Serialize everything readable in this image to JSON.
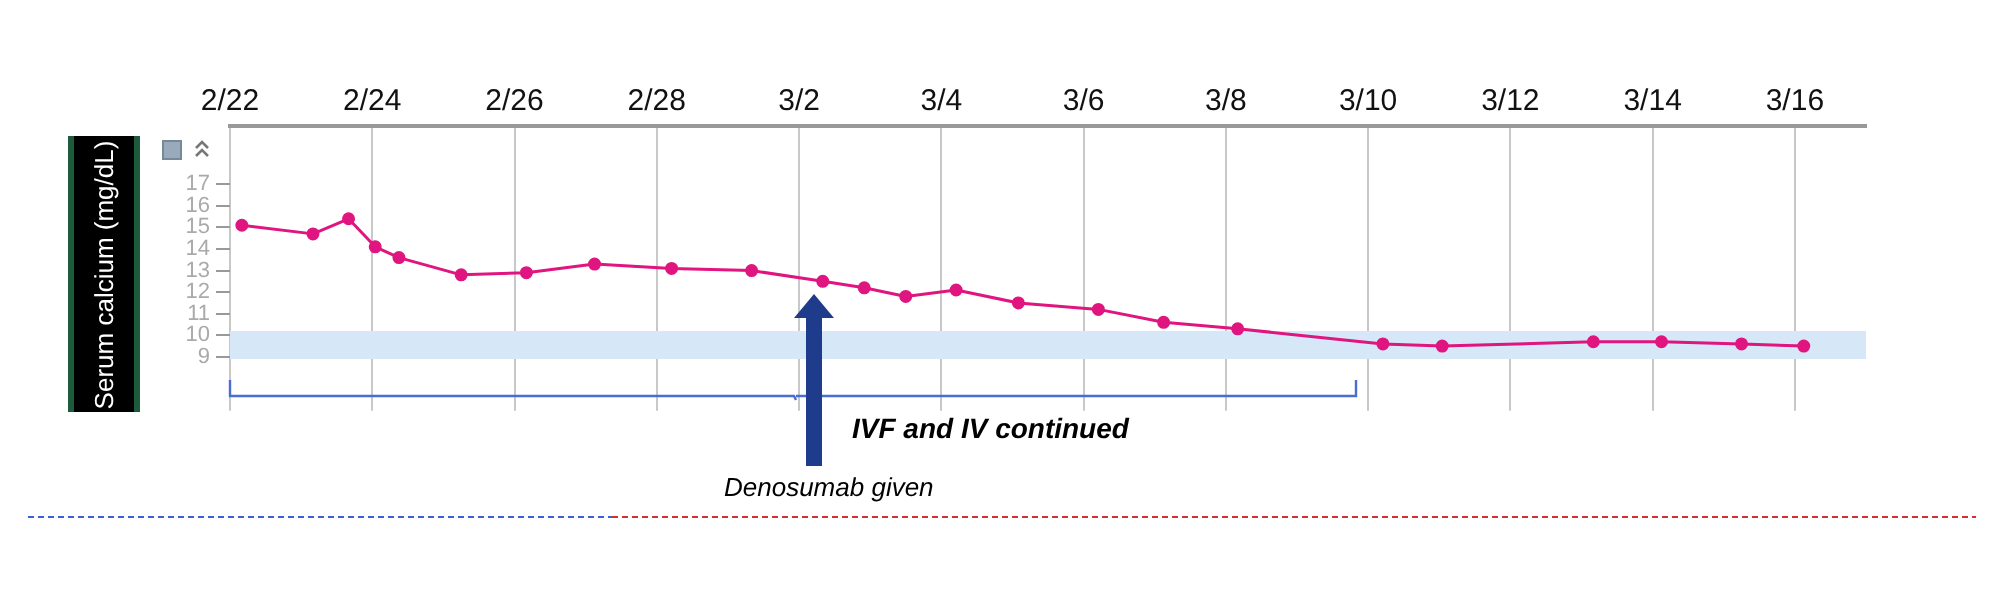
{
  "chart_data": {
    "type": "line",
    "ylabel": "Serum calcium (mg/dL)",
    "x": [
      "--02-22T04:00",
      "--02-23T04:00",
      "--02-23T16:00",
      "--02-24T01:00",
      "--02-24T09:00",
      "--02-25T06:00",
      "--02-26T04:00",
      "--02-27T03:00",
      "--02-28T05:00",
      "--03-01T08:00",
      "--03-02T08:00",
      "--03-02T22:00",
      "--03-03T12:00",
      "--03-04T05:00",
      "--03-05T02:00",
      "--03-06T05:00",
      "--03-07T03:00",
      "--03-08T04:00",
      "--03-10T05:00",
      "--03-11T01:00",
      "--03-13T04:00",
      "--03-14T03:00",
      "--03-15T06:00",
      "--03-16T03:00"
    ],
    "series": [
      {
        "color": "#e0157f",
        "values": [
          15.1,
          14.7,
          15.4,
          14.1,
          13.6,
          12.8,
          12.9,
          13.3,
          13.1,
          13.0,
          12.5,
          12.2,
          11.8,
          12.1,
          11.5,
          11.2,
          10.6,
          10.3,
          9.6,
          9.5,
          9.7,
          9.7,
          9.6,
          9.5
        ]
      }
    ],
    "xlim": [
      "--02-22",
      "--03-17"
    ],
    "xticks": [
      {
        "value": "--02-22",
        "label": "2/22"
      },
      {
        "value": "--02-24",
        "label": "2/24"
      },
      {
        "value": "--02-26",
        "label": "2/26"
      },
      {
        "value": "--02-28",
        "label": "2/28"
      },
      {
        "value": "--03-02",
        "label": "3/2"
      },
      {
        "value": "--03-04",
        "label": "3/4"
      },
      {
        "value": "--03-06",
        "label": "3/6"
      },
      {
        "value": "--03-08",
        "label": "3/8"
      },
      {
        "value": "--03-10",
        "label": "3/10"
      },
      {
        "value": "--03-12",
        "label": "3/12"
      },
      {
        "value": "--03-14",
        "label": "3/14"
      },
      {
        "value": "--03-16",
        "label": "3/16"
      }
    ],
    "ylim": [
      6.5,
      19.7
    ],
    "yticks": [
      9,
      10,
      11,
      12,
      13,
      14,
      15,
      16,
      17
    ],
    "bands": [
      {
        "axis": "y",
        "from": 8.9,
        "to": 10.2,
        "color": "#d6e8f8"
      }
    ],
    "annotations": [
      "IVF and IV continued",
      "Denosumab given"
    ],
    "grid": "x",
    "legend": false,
    "marker": "circle",
    "line_style": "solid"
  }
}
